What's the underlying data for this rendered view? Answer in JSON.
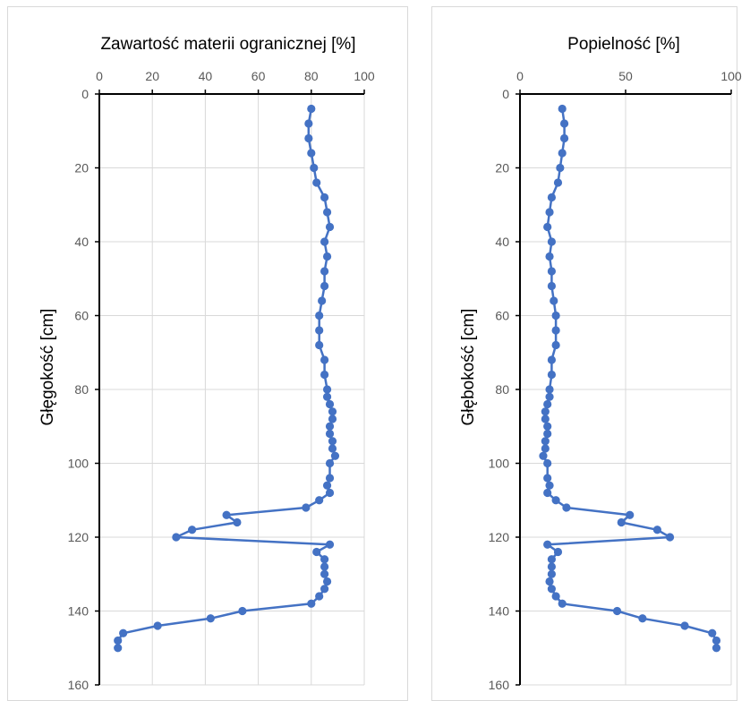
{
  "chart_data": [
    {
      "type": "line",
      "title": "Zawartość materii ogranicznej [%]",
      "xlabel": "",
      "ylabel": "Głęgokość [cm]",
      "xlim": [
        0,
        100
      ],
      "ylim": [
        0,
        160
      ],
      "y_inverted": true,
      "x_axis_position": "top",
      "grid": true,
      "x_ticks": [
        "0",
        "20",
        "40",
        "60",
        "80",
        "100"
      ],
      "y_ticks": [
        "0",
        "20",
        "40",
        "60",
        "80",
        "100",
        "120",
        "140",
        "160"
      ],
      "series": [
        {
          "color": "#4472c4",
          "points": [
            [
              80,
              4
            ],
            [
              79,
              8
            ],
            [
              79,
              12
            ],
            [
              80,
              16
            ],
            [
              81,
              20
            ],
            [
              82,
              24
            ],
            [
              85,
              28
            ],
            [
              86,
              32
            ],
            [
              87,
              36
            ],
            [
              85,
              40
            ],
            [
              86,
              44
            ],
            [
              85,
              48
            ],
            [
              85,
              52
            ],
            [
              84,
              56
            ],
            [
              83,
              60
            ],
            [
              83,
              64
            ],
            [
              83,
              68
            ],
            [
              85,
              72
            ],
            [
              85,
              76
            ],
            [
              86,
              80
            ],
            [
              86,
              82
            ],
            [
              87,
              84
            ],
            [
              88,
              86
            ],
            [
              88,
              88
            ],
            [
              87,
              90
            ],
            [
              87,
              92
            ],
            [
              88,
              94
            ],
            [
              88,
              96
            ],
            [
              89,
              98
            ],
            [
              87,
              100
            ],
            [
              87,
              104
            ],
            [
              86,
              106
            ],
            [
              87,
              108
            ],
            [
              83,
              110
            ],
            [
              78,
              112
            ],
            [
              48,
              114
            ],
            [
              52,
              116
            ],
            [
              35,
              118
            ],
            [
              29,
              120
            ],
            [
              87,
              122
            ],
            [
              82,
              124
            ],
            [
              85,
              126
            ],
            [
              85,
              128
            ],
            [
              85,
              130
            ],
            [
              86,
              132
            ],
            [
              85,
              134
            ],
            [
              83,
              136
            ],
            [
              80,
              138
            ],
            [
              54,
              140
            ],
            [
              42,
              142
            ],
            [
              22,
              144
            ],
            [
              9,
              146
            ],
            [
              7,
              148
            ],
            [
              7,
              150
            ]
          ]
        }
      ]
    },
    {
      "type": "line",
      "title": "Popielność [%]",
      "xlabel": "",
      "ylabel": "Głębokość [cm]",
      "xlim": [
        0,
        100
      ],
      "ylim": [
        0,
        160
      ],
      "y_inverted": true,
      "x_axis_position": "top",
      "grid": true,
      "x_ticks": [
        "0",
        "50",
        "100"
      ],
      "y_ticks": [
        "0",
        "20",
        "40",
        "60",
        "80",
        "100",
        "120",
        "140",
        "160"
      ],
      "series": [
        {
          "color": "#4472c4",
          "points": [
            [
              20,
              4
            ],
            [
              21,
              8
            ],
            [
              21,
              12
            ],
            [
              20,
              16
            ],
            [
              19,
              20
            ],
            [
              18,
              24
            ],
            [
              15,
              28
            ],
            [
              14,
              32
            ],
            [
              13,
              36
            ],
            [
              15,
              40
            ],
            [
              14,
              44
            ],
            [
              15,
              48
            ],
            [
              15,
              52
            ],
            [
              16,
              56
            ],
            [
              17,
              60
            ],
            [
              17,
              64
            ],
            [
              17,
              68
            ],
            [
              15,
              72
            ],
            [
              15,
              76
            ],
            [
              14,
              80
            ],
            [
              14,
              82
            ],
            [
              13,
              84
            ],
            [
              12,
              86
            ],
            [
              12,
              88
            ],
            [
              13,
              90
            ],
            [
              13,
              92
            ],
            [
              12,
              94
            ],
            [
              12,
              96
            ],
            [
              11,
              98
            ],
            [
              13,
              100
            ],
            [
              13,
              104
            ],
            [
              14,
              106
            ],
            [
              13,
              108
            ],
            [
              17,
              110
            ],
            [
              22,
              112
            ],
            [
              52,
              114
            ],
            [
              48,
              116
            ],
            [
              65,
              118
            ],
            [
              71,
              120
            ],
            [
              13,
              122
            ],
            [
              18,
              124
            ],
            [
              15,
              126
            ],
            [
              15,
              128
            ],
            [
              15,
              130
            ],
            [
              14,
              132
            ],
            [
              15,
              134
            ],
            [
              17,
              136
            ],
            [
              20,
              138
            ],
            [
              46,
              140
            ],
            [
              58,
              142
            ],
            [
              78,
              144
            ],
            [
              91,
              146
            ],
            [
              93,
              148
            ],
            [
              93,
              150
            ]
          ]
        }
      ]
    }
  ]
}
